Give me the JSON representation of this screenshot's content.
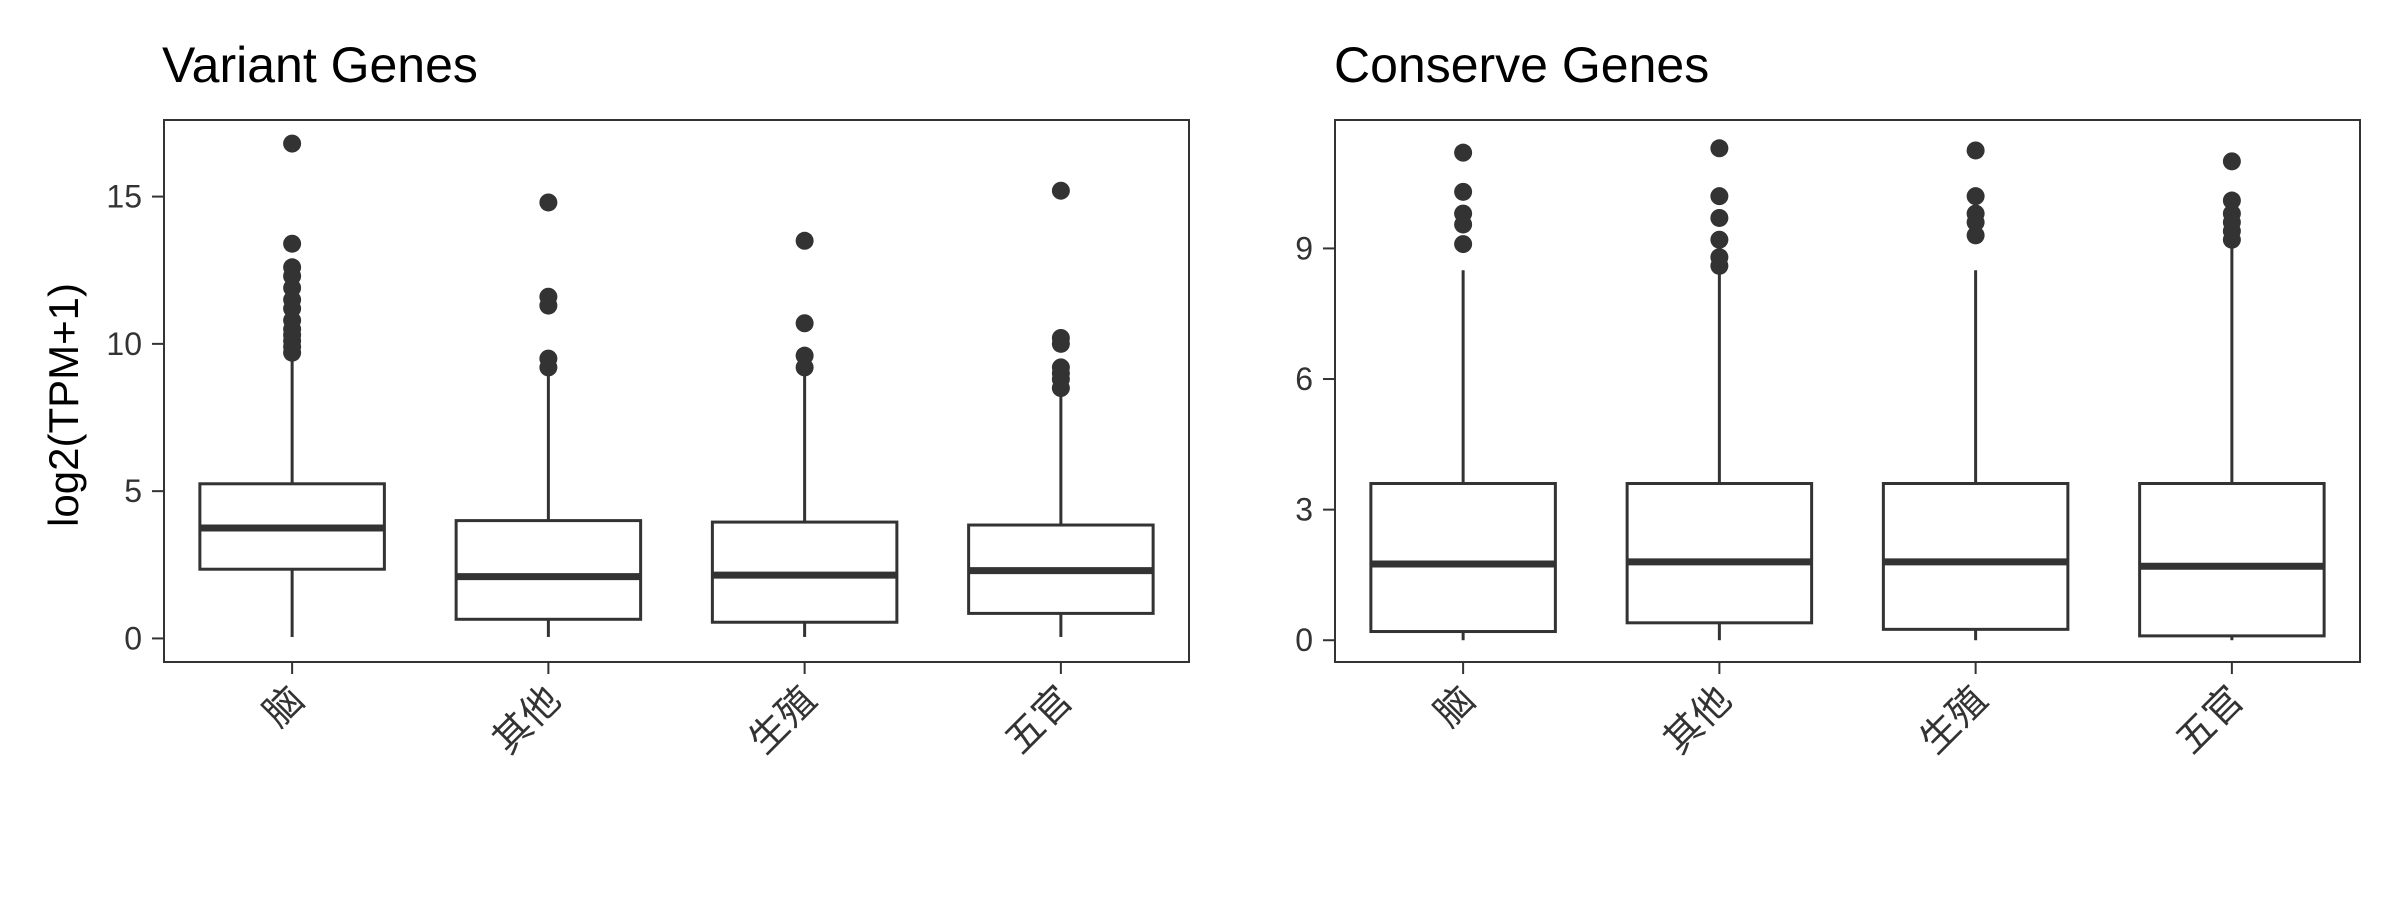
{
  "panels": [
    {
      "title": "Variant Genes",
      "ylabel": "log2(TPM+1)"
    },
    {
      "title": "Conserve Genes",
      "ylabel": ""
    }
  ],
  "chart_data": [
    {
      "type": "boxplot",
      "title": "Variant Genes",
      "xlabel": "",
      "ylabel": "log2(TPM+1)",
      "ylim": [
        -0.8,
        17.6
      ],
      "yticks": [
        0,
        5,
        10,
        15
      ],
      "grid": false,
      "categories": [
        "脑",
        "其他",
        "生殖",
        "五官"
      ],
      "boxes": [
        {
          "category": "脑",
          "min": 0.05,
          "q1": 2.35,
          "median": 3.75,
          "q3": 5.25,
          "max": 9.6,
          "outliers": [
            9.7,
            9.9,
            10.1,
            10.3,
            10.5,
            10.8,
            11.2,
            11.5,
            11.9,
            12.3,
            12.6,
            13.4,
            16.8
          ]
        },
        {
          "category": "其他",
          "min": 0.05,
          "q1": 0.65,
          "median": 2.1,
          "q3": 4.0,
          "max": 9.0,
          "outliers": [
            9.2,
            9.5,
            11.3,
            11.6,
            14.8
          ]
        },
        {
          "category": "生殖",
          "min": 0.05,
          "q1": 0.55,
          "median": 2.15,
          "q3": 3.95,
          "max": 9.0,
          "outliers": [
            9.2,
            9.6,
            10.7,
            13.5
          ]
        },
        {
          "category": "五官",
          "min": 0.05,
          "q1": 0.85,
          "median": 2.3,
          "q3": 3.85,
          "max": 8.4,
          "outliers": [
            8.5,
            8.8,
            9.0,
            9.2,
            10.0,
            10.2,
            15.2
          ]
        }
      ]
    },
    {
      "type": "boxplot",
      "title": "Conserve Genes",
      "xlabel": "",
      "ylabel": "",
      "ylim": [
        -0.5,
        11.95
      ],
      "yticks": [
        0,
        3,
        6,
        9
      ],
      "grid": false,
      "categories": [
        "脑",
        "其他",
        "生殖",
        "五官"
      ],
      "boxes": [
        {
          "category": "脑",
          "min": 0.0,
          "q1": 0.2,
          "median": 1.75,
          "q3": 3.6,
          "max": 8.5,
          "outliers": [
            9.1,
            9.55,
            9.8,
            10.3,
            11.2
          ]
        },
        {
          "category": "其他",
          "min": 0.0,
          "q1": 0.4,
          "median": 1.8,
          "q3": 3.6,
          "max": 8.5,
          "outliers": [
            8.6,
            8.8,
            9.2,
            9.7,
            10.2,
            11.3
          ]
        },
        {
          "category": "生殖",
          "min": 0.0,
          "q1": 0.25,
          "median": 1.8,
          "q3": 3.6,
          "max": 8.5,
          "outliers": [
            9.3,
            9.6,
            9.8,
            10.2,
            11.25
          ]
        },
        {
          "category": "五官",
          "min": 0.0,
          "q1": 0.1,
          "median": 1.7,
          "q3": 3.6,
          "max": 9.0,
          "outliers": [
            9.2,
            9.4,
            9.6,
            9.8,
            10.1,
            11.0
          ]
        }
      ]
    }
  ],
  "colors": {
    "box_stroke": "#333333",
    "outlier": "#333333",
    "panel_border": "#333333",
    "background": "#ffffff"
  }
}
